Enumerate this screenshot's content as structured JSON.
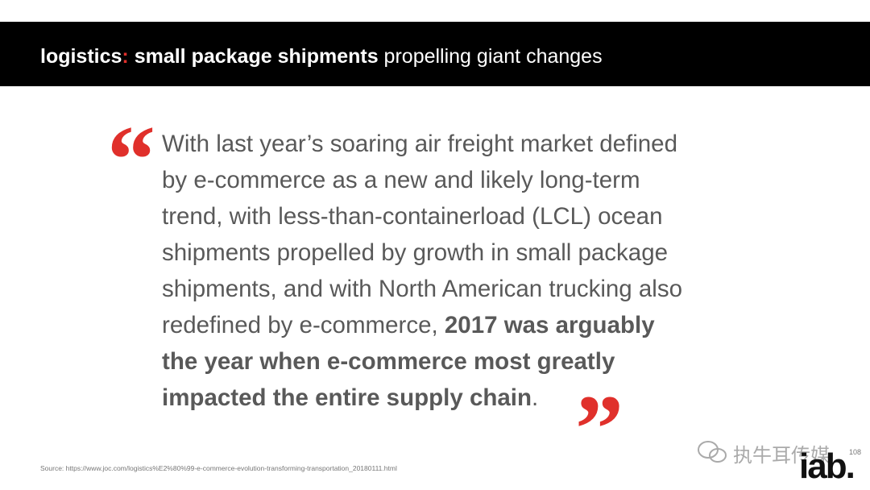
{
  "header": {
    "title": [
      {
        "text": "logistics",
        "bold": true,
        "color": "#ffffff"
      },
      {
        "text": ":",
        "bold": true,
        "color": "#e0302b"
      },
      {
        "text": " small package shipments",
        "bold": true,
        "color": "#ffffff"
      },
      {
        "text": " propelling giant changes",
        "bold": false,
        "color": "#ffffff"
      }
    ]
  },
  "quote": {
    "open_mark": "“",
    "close_mark": "”",
    "lines": [
      [
        {
          "text": "With last year’s soaring air freight market defined",
          "bold": false
        }
      ],
      [
        {
          "text": "by e-commerce as a new and likely long-term",
          "bold": false
        }
      ],
      [
        {
          "text": "trend, with less-than-containerload (LCL) ocean",
          "bold": false
        }
      ],
      [
        {
          "text": "shipments propelled by growth in small package",
          "bold": false
        }
      ],
      [
        {
          "text": "shipments, and with North American trucking also",
          "bold": false
        }
      ],
      [
        {
          "text": "redefined by e-commerce, ",
          "bold": false
        },
        {
          "text": "2017 was arguably",
          "bold": true
        }
      ],
      [
        {
          "text": "the year when e-commerce most greatly",
          "bold": true
        }
      ],
      [
        {
          "text": "impacted the entire supply chain",
          "bold": true
        },
        {
          "text": ".",
          "bold": false
        }
      ]
    ]
  },
  "footer": {
    "source": "Source: https://www.joc.com/logistics%E2%80%99-e-commerce-evolution-transforming-transportation_20180111.html",
    "page_number": "108",
    "watermark": "执牛耳传媒",
    "logo": "iab."
  }
}
